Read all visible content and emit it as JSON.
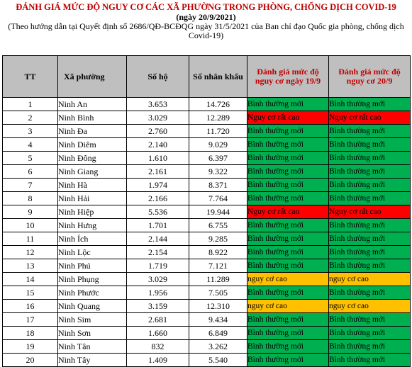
{
  "header": {
    "title": "ĐÁNH GIÁ MỨC ĐỘ NGUY CƠ CÁC XÃ PHƯỜNG TRONG PHÒNG, CHỐNG DỊCH COVID-19",
    "date": "(ngày 20/9/2021)",
    "subtitle": "(Theo hướng dẫn tại Quyết định số 2686/QĐ-BCĐQG ngày 31/5/2021 của Ban chỉ đạo Quốc gia phòng, chống dịch Covid-19)"
  },
  "colors": {
    "title": "#c00000",
    "header_bg": "#bfbfbf",
    "normal": "#00b050",
    "very_high": "#ff0000",
    "high": "#ffc000"
  },
  "table": {
    "columns": [
      "TT",
      "Xã phường",
      "Số hộ",
      "Số nhân khẩu",
      "Đánh giá mức độ nguy cơ ngày 19/9",
      "Đánh giá mức độ nguy cơ 20/9"
    ],
    "rows": [
      {
        "tt": "1",
        "name": "Ninh An",
        "households": "3.653",
        "population": "14.726",
        "risk_19": "Bình thường mới",
        "risk_20": "Bình thường mới",
        "level_19": "normal",
        "level_20": "normal"
      },
      {
        "tt": "2",
        "name": "Ninh Bình",
        "households": "3.029",
        "population": "12.289",
        "risk_19": "Nguy cơ rất cao",
        "risk_20": "Nguy cơ rất cao",
        "level_19": "veryhigh",
        "level_20": "veryhigh"
      },
      {
        "tt": "3",
        "name": "Ninh Đa",
        "households": "2.760",
        "population": "11.720",
        "risk_19": "Bình thường mới",
        "risk_20": "Bình thường mới",
        "level_19": "normal",
        "level_20": "normal"
      },
      {
        "tt": "4",
        "name": "Ninh Diêm",
        "households": "2.140",
        "population": "9.029",
        "risk_19": "Bình thường mới",
        "risk_20": "Bình thường mới",
        "level_19": "normal",
        "level_20": "normal"
      },
      {
        "tt": "5",
        "name": "Ninh Đông",
        "households": "1.610",
        "population": "6.397",
        "risk_19": "Bình thường mới",
        "risk_20": "Bình thường mới",
        "level_19": "normal",
        "level_20": "normal"
      },
      {
        "tt": "6",
        "name": "Ninh Giang",
        "households": "2.161",
        "population": "9.322",
        "risk_19": "Bình thường mới",
        "risk_20": "Bình thường mới",
        "level_19": "normal",
        "level_20": "normal"
      },
      {
        "tt": "7",
        "name": "Ninh Hà",
        "households": "1.974",
        "population": "8.371",
        "risk_19": "Bình thường mới",
        "risk_20": "Bình thường mới",
        "level_19": "normal",
        "level_20": "normal"
      },
      {
        "tt": "8",
        "name": "Ninh Hải",
        "households": "2.166",
        "population": "7.764",
        "risk_19": "Bình thường mới",
        "risk_20": "Bình thường mới",
        "level_19": "normal",
        "level_20": "normal"
      },
      {
        "tt": "9",
        "name": "Ninh Hiệp",
        "households": "5.536",
        "population": "19.944",
        "risk_19": "Nguy cơ rất cao",
        "risk_20": "Nguy cơ rất cao",
        "level_19": "veryhigh",
        "level_20": "veryhigh"
      },
      {
        "tt": "10",
        "name": "Ninh Hưng",
        "households": "1.701",
        "population": "6.755",
        "risk_19": "Bình thường mới",
        "risk_20": "Bình thường mới",
        "level_19": "normal",
        "level_20": "normal"
      },
      {
        "tt": "11",
        "name": "Ninh Ích",
        "households": "2.144",
        "population": "9.285",
        "risk_19": "Bình thường mới",
        "risk_20": "Bình thường mới",
        "level_19": "normal",
        "level_20": "normal"
      },
      {
        "tt": "12",
        "name": "Ninh Lộc",
        "households": "2.154",
        "population": "8.922",
        "risk_19": "Bình thường mới",
        "risk_20": "Bình thường mới",
        "level_19": "normal",
        "level_20": "normal"
      },
      {
        "tt": "13",
        "name": "Ninh Phú",
        "households": "1.719",
        "population": "7.121",
        "risk_19": "Bình thường mới",
        "risk_20": "Bình thường mới",
        "level_19": "normal",
        "level_20": "normal"
      },
      {
        "tt": "14",
        "name": "Ninh Phụng",
        "households": "3.029",
        "population": "11.289",
        "risk_19": "nguy cơ cao",
        "risk_20": "nguy cơ cao",
        "level_19": "high",
        "level_20": "high"
      },
      {
        "tt": "15",
        "name": "Ninh Phước",
        "households": "1.956",
        "population": "7.505",
        "risk_19": "Bình thường mới",
        "risk_20": "Bình thường mới",
        "level_19": "normal",
        "level_20": "normal"
      },
      {
        "tt": "16",
        "name": "Ninh Quang",
        "households": "3.159",
        "population": "12.310",
        "risk_19": "nguy cơ cao",
        "risk_20": "nguy cơ cao",
        "level_19": "high",
        "level_20": "high"
      },
      {
        "tt": "17",
        "name": "Ninh Sim",
        "households": "2.681",
        "population": "9.434",
        "risk_19": "Bình thường mới",
        "risk_20": "Bình thường mới",
        "level_19": "normal",
        "level_20": "normal"
      },
      {
        "tt": "18",
        "name": "Ninh Sơn",
        "households": "1.660",
        "population": "6.849",
        "risk_19": "Bình thường mới",
        "risk_20": "Bình thường mới",
        "level_19": "normal",
        "level_20": "normal"
      },
      {
        "tt": "19",
        "name": "Ninh Tân",
        "households": "832",
        "population": "3.262",
        "risk_19": "Bình thường mới",
        "risk_20": "Bình thường mới",
        "level_19": "normal",
        "level_20": "normal"
      },
      {
        "tt": "20",
        "name": "Ninh Tây",
        "households": "1.409",
        "population": "5.540",
        "risk_19": "Bình thường mới",
        "risk_20": "Bình thường mới",
        "level_19": "normal",
        "level_20": "normal"
      }
    ]
  }
}
